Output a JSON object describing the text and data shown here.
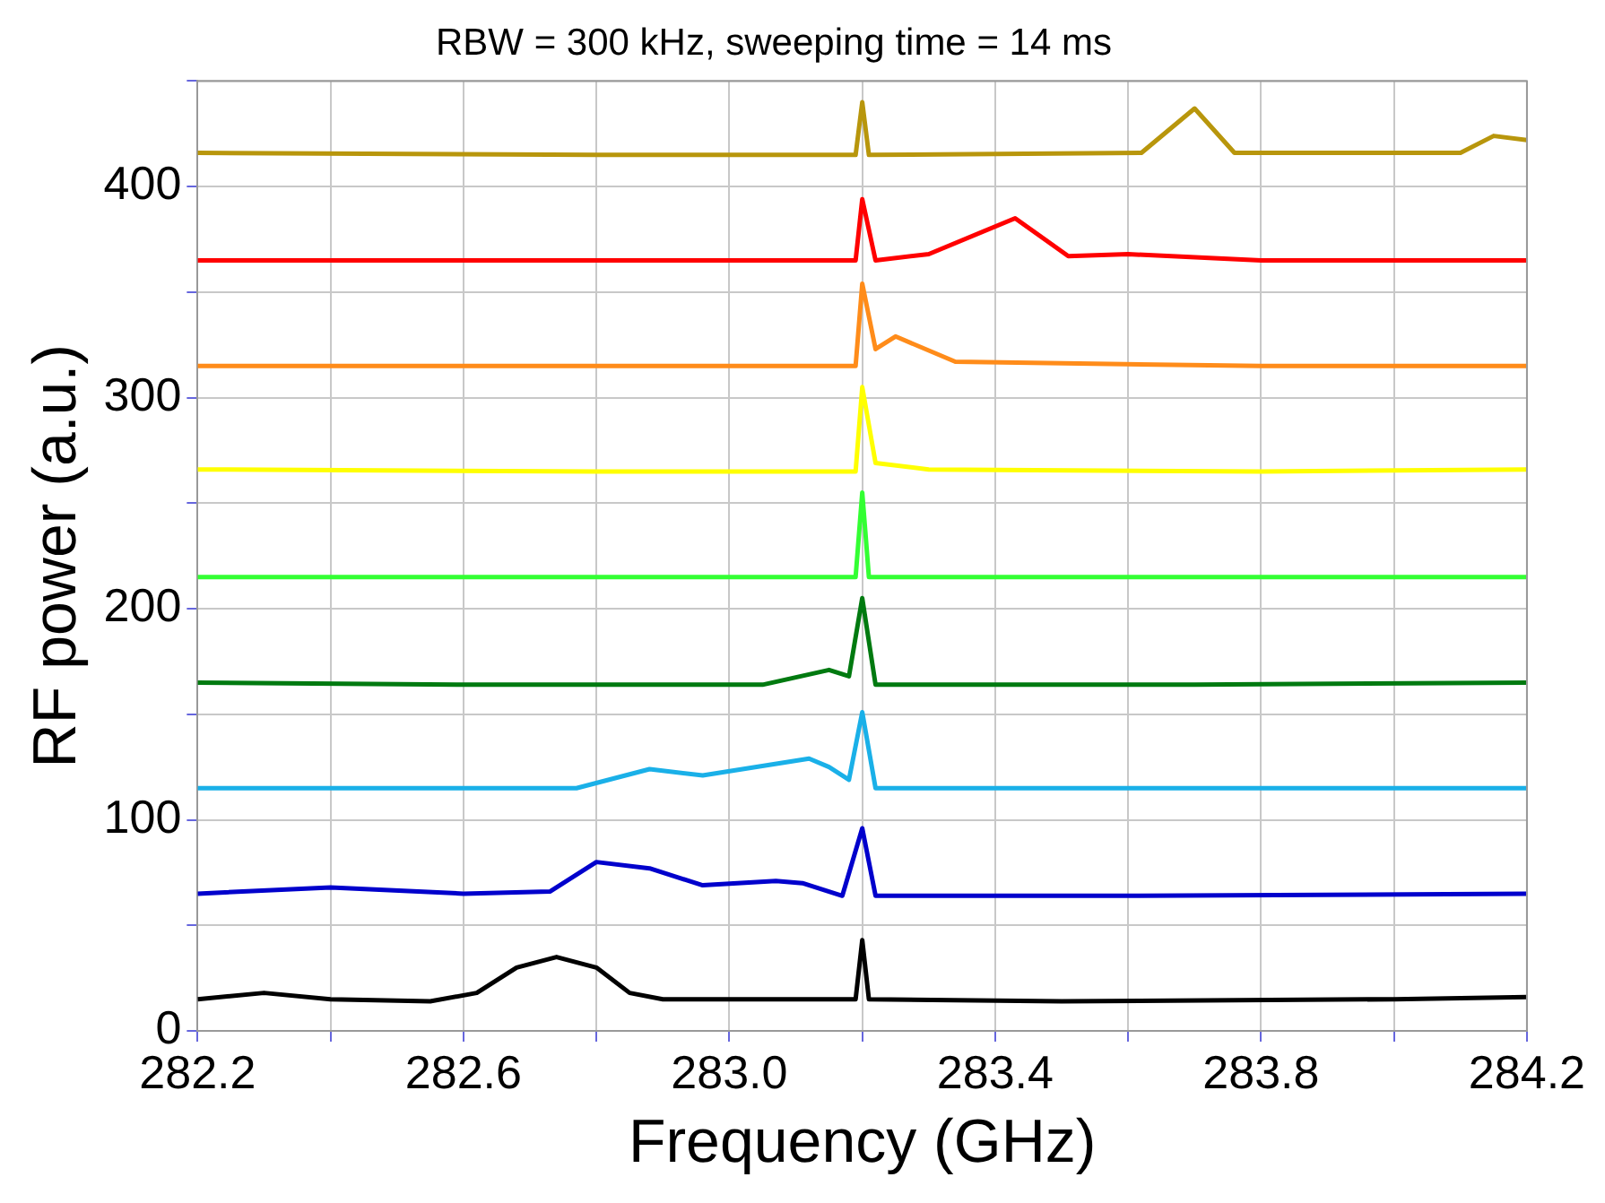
{
  "chart_data": {
    "type": "line",
    "title": "RBW = 300 kHz, sweeping time = 14 ms",
    "xlabel": "Frequency (GHz)",
    "ylabel": "RF power (a.u.)",
    "xlim": [
      282.2,
      284.2
    ],
    "ylim": [
      0,
      450
    ],
    "xticks": [
      282.2,
      {
        "value": 282.4,
        "label": null
      },
      282.6,
      {
        "value": 282.8,
        "label": null
      },
      {
        "value": 283,
        "label": "283.0"
      },
      {
        "value": 283.2,
        "label": null
      },
      283.4,
      {
        "value": 283.6,
        "label": null
      },
      283.8,
      {
        "value": 284.0,
        "label": null
      },
      284.2
    ],
    "yticks": [
      0,
      {
        "value": 50,
        "label": null
      },
      100,
      {
        "value": 150,
        "label": null
      },
      200,
      {
        "value": 250,
        "label": null
      },
      300,
      {
        "value": 350,
        "label": null
      },
      400,
      {
        "value": 450,
        "label": null
      }
    ],
    "grid": true,
    "legend": false,
    "marker": "none",
    "line_style": "solid",
    "series": [
      {
        "color": "#000000",
        "x": [
          282.2,
          282.3,
          282.4,
          282.55,
          282.62,
          282.68,
          282.74,
          282.8,
          282.85,
          282.9,
          283.19,
          283.2,
          283.21,
          283.5,
          284.0,
          284.2
        ],
        "values": [
          15,
          18,
          15,
          14,
          18,
          30,
          35,
          30,
          18,
          15,
          15,
          43,
          15,
          14,
          15,
          16
        ]
      },
      {
        "color": "#0000cc",
        "x": [
          282.2,
          282.4,
          282.6,
          282.73,
          282.8,
          282.88,
          282.96,
          283.07,
          283.11,
          283.17,
          283.2,
          283.22,
          283.6,
          284.2
        ],
        "values": [
          65,
          68,
          65,
          66,
          80,
          77,
          69,
          71,
          70,
          64,
          96,
          64,
          64,
          65
        ]
      },
      {
        "color": "#1ab0e8",
        "x": [
          282.2,
          282.5,
          282.77,
          282.88,
          282.96,
          283.12,
          283.15,
          283.18,
          283.2,
          283.22,
          283.6,
          284.2
        ],
        "values": [
          115,
          115,
          115,
          124,
          121,
          129,
          125,
          119,
          151,
          115,
          115,
          115
        ]
      },
      {
        "color": "#007a10",
        "x": [
          282.2,
          282.6,
          283.05,
          283.15,
          283.18,
          283.2,
          283.22,
          283.7,
          284.2
        ],
        "values": [
          165,
          164,
          164,
          171,
          168,
          205,
          164,
          164,
          165
        ]
      },
      {
        "color": "#33ff33",
        "x": [
          282.2,
          282.8,
          283.19,
          283.2,
          283.21,
          283.7,
          284.2
        ],
        "values": [
          215,
          215,
          215,
          255,
          215,
          215,
          215
        ]
      },
      {
        "color": "#ffff00",
        "x": [
          282.2,
          282.8,
          283.19,
          283.2,
          283.22,
          283.3,
          283.8,
          284.2
        ],
        "values": [
          266,
          265,
          265,
          305,
          269,
          266,
          265,
          266
        ]
      },
      {
        "color": "#ff8c1a",
        "x": [
          282.2,
          282.8,
          283.19,
          283.2,
          283.22,
          283.25,
          283.34,
          283.8,
          284.2
        ],
        "values": [
          315,
          315,
          315,
          354,
          323,
          329,
          317,
          315,
          315
        ]
      },
      {
        "color": "#ff0000",
        "x": [
          282.2,
          282.8,
          283.19,
          283.2,
          283.22,
          283.3,
          283.43,
          283.51,
          283.6,
          283.8,
          284.2
        ],
        "values": [
          365,
          365,
          365,
          394,
          365,
          368,
          385,
          367,
          368,
          365,
          365
        ]
      },
      {
        "color": "#b8960c",
        "x": [
          282.2,
          282.8,
          283.19,
          283.2,
          283.21,
          283.62,
          283.7,
          283.76,
          284.1,
          284.15,
          284.2
        ],
        "values": [
          416,
          415,
          415,
          440,
          415,
          416,
          437,
          416,
          416,
          424,
          422
        ]
      }
    ]
  }
}
